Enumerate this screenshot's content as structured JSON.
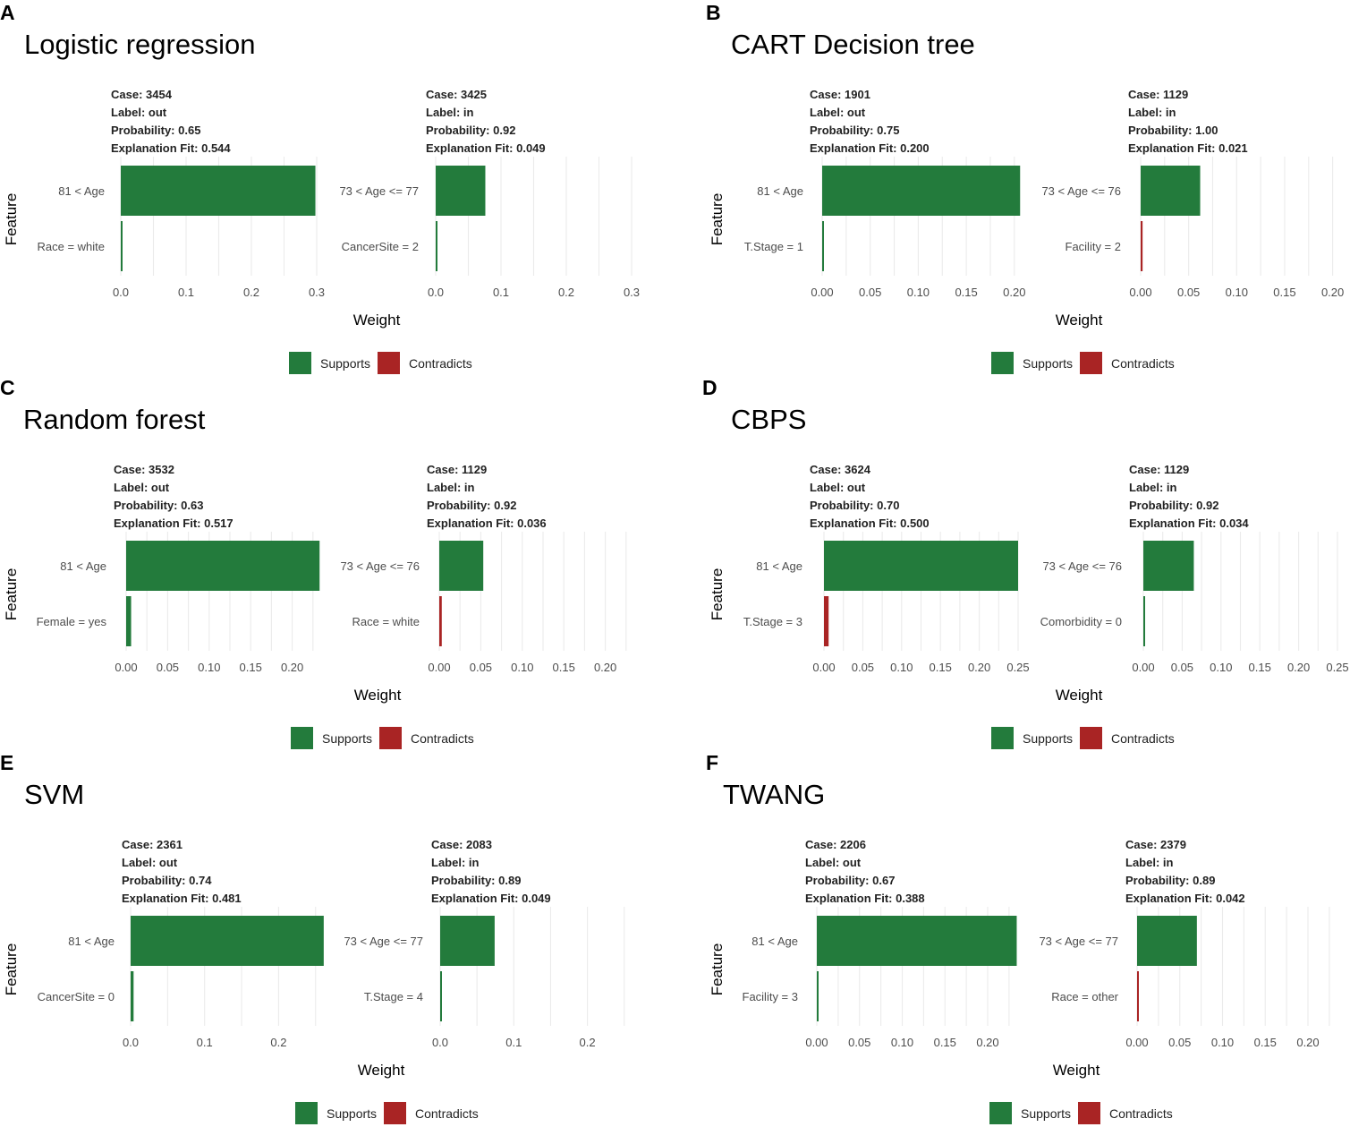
{
  "chart_data": [
    {
      "letter": "A",
      "title": "Logistic regression",
      "type": "bar",
      "xlabel": "Weight",
      "ylabel": "Feature",
      "xlim": [
        0,
        0.33
      ],
      "ticks": [
        "0.0",
        "0.1",
        "0.2",
        "0.3"
      ],
      "legend": {
        "supports": "Supports",
        "contradicts": "Contradicts"
      },
      "colors": {
        "supports": "#237b3c",
        "contradicts": "#a92424"
      },
      "cases": [
        {
          "info": [
            "Case: 3454",
            "Label: out",
            "Probability: 0.65",
            "Explanation Fit: 0.544"
          ],
          "features": [
            {
              "label": "81 < Age",
              "weight": 0.298,
              "effect": "supports"
            },
            {
              "label": "Race = white",
              "weight": 0.002,
              "effect": "supports"
            }
          ]
        },
        {
          "info": [
            "Case: 3425",
            "Label: in",
            "Probability: 0.92",
            "Explanation Fit: 0.049"
          ],
          "features": [
            {
              "label": "73 < Age <= 77",
              "weight": 0.076,
              "effect": "supports"
            },
            {
              "label": "CancerSite = 2",
              "weight": 0.002,
              "effect": "supports"
            }
          ]
        }
      ]
    },
    {
      "letter": "B",
      "title": "CART Decision tree",
      "type": "bar",
      "xlabel": "Weight",
      "ylabel": "Feature",
      "xlim": [
        0,
        0.21
      ],
      "ticks": [
        "0.00",
        "0.05",
        "0.10",
        "0.15",
        "0.20"
      ],
      "legend": {
        "supports": "Supports",
        "contradicts": "Contradicts"
      },
      "colors": {
        "supports": "#237b3c",
        "contradicts": "#a92424"
      },
      "cases": [
        {
          "info": [
            "Case: 1901",
            "Label: out",
            "Probability: 0.75",
            "Explanation Fit: 0.200"
          ],
          "features": [
            {
              "label": "81 < Age",
              "weight": 0.206,
              "effect": "supports"
            },
            {
              "label": "T.Stage = 1",
              "weight": 0.001,
              "effect": "supports"
            }
          ]
        },
        {
          "info": [
            "Case: 1129",
            "Label: in",
            "Probability: 1.00",
            "Explanation Fit: 0.021"
          ],
          "features": [
            {
              "label": "73 < Age <= 76",
              "weight": 0.062,
              "effect": "supports"
            },
            {
              "label": "Facility = 2",
              "weight": 0.002,
              "effect": "contradicts"
            }
          ]
        }
      ]
    },
    {
      "letter": "C",
      "title": "Random forest",
      "type": "bar",
      "xlabel": "Weight",
      "ylabel": "Feature",
      "xlim": [
        0,
        0.23
      ],
      "ticks": [
        "0.00",
        "0.05",
        "0.10",
        "0.15",
        "0.20"
      ],
      "legend": {
        "supports": "Supports",
        "contradicts": "Contradicts"
      },
      "colors": {
        "supports": "#237b3c",
        "contradicts": "#a92424"
      },
      "cases": [
        {
          "info": [
            "Case: 3532",
            "Label: out",
            "Probability: 0.63",
            "Explanation Fit: 0.517"
          ],
          "features": [
            {
              "label": "81 < Age",
              "weight": 0.233,
              "effect": "supports"
            },
            {
              "label": "Female = yes",
              "weight": 0.006,
              "effect": "supports"
            }
          ]
        },
        {
          "info": [
            "Case: 1129",
            "Label: in",
            "Probability: 0.92",
            "Explanation Fit: 0.036"
          ],
          "features": [
            {
              "label": "73 < Age <= 76",
              "weight": 0.053,
              "effect": "supports"
            },
            {
              "label": "Race = white",
              "weight": 0.003,
              "effect": "contradicts"
            }
          ]
        }
      ]
    },
    {
      "letter": "D",
      "title": "CBPS",
      "type": "bar",
      "xlabel": "Weight",
      "ylabel": "Feature",
      "xlim": [
        0,
        0.25
      ],
      "ticks": [
        "0.00",
        "0.05",
        "0.10",
        "0.15",
        "0.20",
        "0.25"
      ],
      "legend": {
        "supports": "Supports",
        "contradicts": "Contradicts"
      },
      "colors": {
        "supports": "#237b3c",
        "contradicts": "#a92424"
      },
      "cases": [
        {
          "info": [
            "Case: 3624",
            "Label: out",
            "Probability: 0.70",
            "Explanation Fit: 0.500"
          ],
          "features": [
            {
              "label": "81 < Age",
              "weight": 0.25,
              "effect": "supports"
            },
            {
              "label": "T.Stage = 3",
              "weight": 0.006,
              "effect": "contradicts"
            }
          ]
        },
        {
          "info": [
            "Case: 1129",
            "Label: in",
            "Probability: 0.92",
            "Explanation Fit: 0.034"
          ],
          "features": [
            {
              "label": "73 < Age <= 76",
              "weight": 0.065,
              "effect": "supports"
            },
            {
              "label": "Comorbidity = 0",
              "weight": 0.001,
              "effect": "supports"
            }
          ]
        }
      ]
    },
    {
      "letter": "E",
      "title": "SVM",
      "type": "bar",
      "xlabel": "Weight",
      "ylabel": "Feature",
      "xlim": [
        0,
        0.26
      ],
      "ticks": [
        "0.0",
        "0.1",
        "0.2"
      ],
      "legend": {
        "supports": "Supports",
        "contradicts": "Contradicts"
      },
      "colors": {
        "supports": "#237b3c",
        "contradicts": "#a92424"
      },
      "cases": [
        {
          "info": [
            "Case: 2361",
            "Label: out",
            "Probability: 0.74",
            "Explanation Fit: 0.481"
          ],
          "features": [
            {
              "label": "81 < Age",
              "weight": 0.261,
              "effect": "supports"
            },
            {
              "label": "CancerSite = 0",
              "weight": 0.004,
              "effect": "supports"
            }
          ]
        },
        {
          "info": [
            "Case: 2083",
            "Label: in",
            "Probability: 0.89",
            "Explanation Fit: 0.049"
          ],
          "features": [
            {
              "label": "73 < Age <= 77",
              "weight": 0.074,
              "effect": "supports"
            },
            {
              "label": "T.Stage = 4",
              "weight": 0.002,
              "effect": "supports"
            }
          ]
        }
      ]
    },
    {
      "letter": "F",
      "title": "TWANG",
      "type": "bar",
      "xlabel": "Weight",
      "ylabel": "Feature",
      "xlim": [
        0,
        0.23
      ],
      "ticks": [
        "0.00",
        "0.05",
        "0.10",
        "0.15",
        "0.20"
      ],
      "legend": {
        "supports": "Supports",
        "contradicts": "Contradicts"
      },
      "colors": {
        "supports": "#237b3c",
        "contradicts": "#a92424"
      },
      "cases": [
        {
          "info": [
            "Case: 2206",
            "Label: out",
            "Probability: 0.67",
            "Explanation Fit: 0.388"
          ],
          "features": [
            {
              "label": "81 < Age",
              "weight": 0.234,
              "effect": "supports"
            },
            {
              "label": "Facility = 3",
              "weight": 0.001,
              "effect": "supports"
            }
          ]
        },
        {
          "info": [
            "Case: 2379",
            "Label: in",
            "Probability: 0.89",
            "Explanation Fit: 0.042"
          ],
          "features": [
            {
              "label": "73 < Age <= 77",
              "weight": 0.07,
              "effect": "supports"
            },
            {
              "label": "Race = other",
              "weight": 0.002,
              "effect": "contradicts"
            }
          ]
        }
      ]
    }
  ]
}
